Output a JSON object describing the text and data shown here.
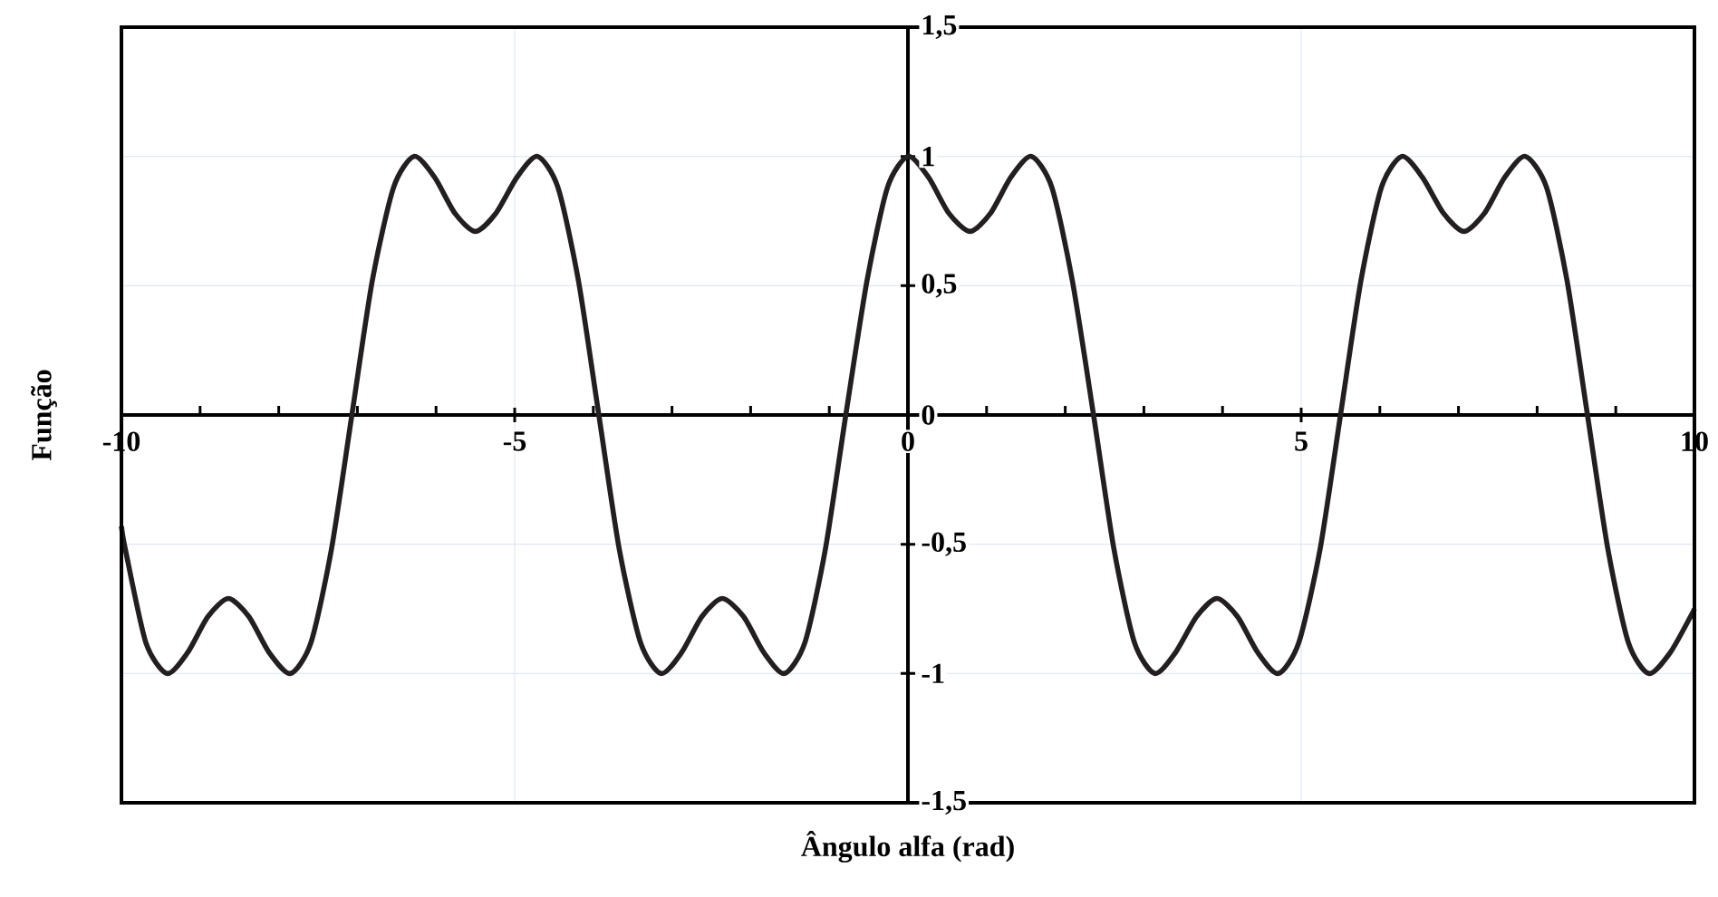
{
  "chart_data": {
    "type": "line",
    "xlabel": "Ângulo alfa (rad)",
    "ylabel": "Função",
    "color": "#231f20",
    "grid": true,
    "xlim": [
      -10,
      10
    ],
    "ylim": [
      -1.5,
      1.5
    ],
    "xticks": [
      -10,
      {
        "value": -9,
        "label": null
      },
      {
        "value": -8,
        "label": null
      },
      {
        "value": -7,
        "label": null
      },
      {
        "value": -6,
        "label": null
      },
      -5,
      {
        "value": -4,
        "label": null
      },
      {
        "value": -3,
        "label": null
      },
      {
        "value": -2,
        "label": null
      },
      {
        "value": -1,
        "label": null
      },
      0,
      {
        "value": 1,
        "label": null
      },
      {
        "value": 2,
        "label": null
      },
      {
        "value": 3,
        "label": null
      },
      {
        "value": 4,
        "label": null
      },
      5,
      {
        "value": 6,
        "label": null
      },
      {
        "value": 7,
        "label": null
      },
      {
        "value": 8,
        "label": null
      },
      {
        "value": 9,
        "label": null
      },
      10
    ],
    "yticks": [
      {
        "value": -1.5,
        "label": "-1,5"
      },
      -1,
      {
        "value": -0.5,
        "label": "-0,5"
      },
      0,
      {
        "value": 0.5,
        "label": "0,5"
      },
      1,
      {
        "value": 1.5,
        "label": "1,5"
      }
    ],
    "x": [
      -10,
      -9.95,
      -9.69,
      -9.42,
      -9.16,
      -8.9,
      -8.64,
      -8.38,
      -8.12,
      -7.85,
      -7.59,
      -7.33,
      -7.07,
      -6.81,
      -6.54,
      -6.28,
      -6.02,
      -5.76,
      -5.5,
      -5.24,
      -4.97,
      -4.71,
      -4.45,
      -4.19,
      -3.93,
      -3.67,
      -3.4,
      -3.14,
      -2.88,
      -2.62,
      -2.36,
      -2.09,
      -1.83,
      -1.57,
      -1.31,
      -1.05,
      -0.79,
      -0.52,
      -0.26,
      0,
      0.26,
      0.52,
      0.79,
      1.05,
      1.31,
      1.57,
      1.83,
      2.09,
      2.36,
      2.62,
      2.88,
      3.14,
      3.4,
      3.67,
      3.93,
      4.19,
      4.45,
      4.71,
      4.97,
      5.24,
      5.5,
      5.76,
      6.02,
      6.28,
      6.54,
      6.81,
      7.07,
      7.33,
      7.59,
      7.85,
      8.12,
      8.38,
      8.64,
      8.9,
      9.16,
      9.42,
      9.69,
      9.95,
      10
    ],
    "values": [
      -0.43,
      -0.52,
      -0.88,
      -1,
      -0.92,
      -0.78,
      -0.71,
      -0.78,
      -0.92,
      -1,
      -0.88,
      -0.52,
      0,
      0.52,
      0.88,
      1,
      0.92,
      0.78,
      0.71,
      0.78,
      0.92,
      1,
      0.88,
      0.52,
      0,
      -0.52,
      -0.88,
      -1,
      -0.92,
      -0.78,
      -0.71,
      -0.78,
      -0.92,
      -1,
      -0.88,
      -0.52,
      0,
      0.52,
      0.88,
      1,
      0.92,
      0.78,
      0.71,
      0.78,
      0.92,
      1,
      0.88,
      0.52,
      0,
      -0.52,
      -0.88,
      -1,
      -0.92,
      -0.78,
      -0.71,
      -0.78,
      -0.92,
      -1,
      -0.88,
      -0.52,
      0,
      0.52,
      0.88,
      1,
      0.92,
      0.78,
      0.71,
      0.78,
      0.92,
      1,
      0.88,
      0.52,
      0,
      -0.52,
      -0.88,
      -1,
      -0.92,
      -0.78,
      -0.75
    ]
  }
}
